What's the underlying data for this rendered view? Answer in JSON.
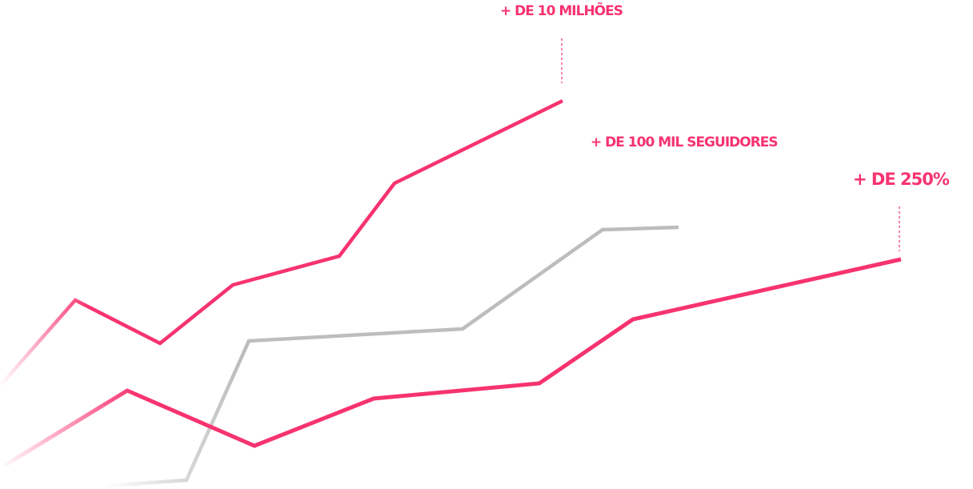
{
  "annotations": [
    {
      "text": "+ DE 10 MILHÕES"
    },
    {
      "text": "+ DE 100 MIL SEGUIDORES"
    },
    {
      "text": "+ DE 250%"
    }
  ]
}
